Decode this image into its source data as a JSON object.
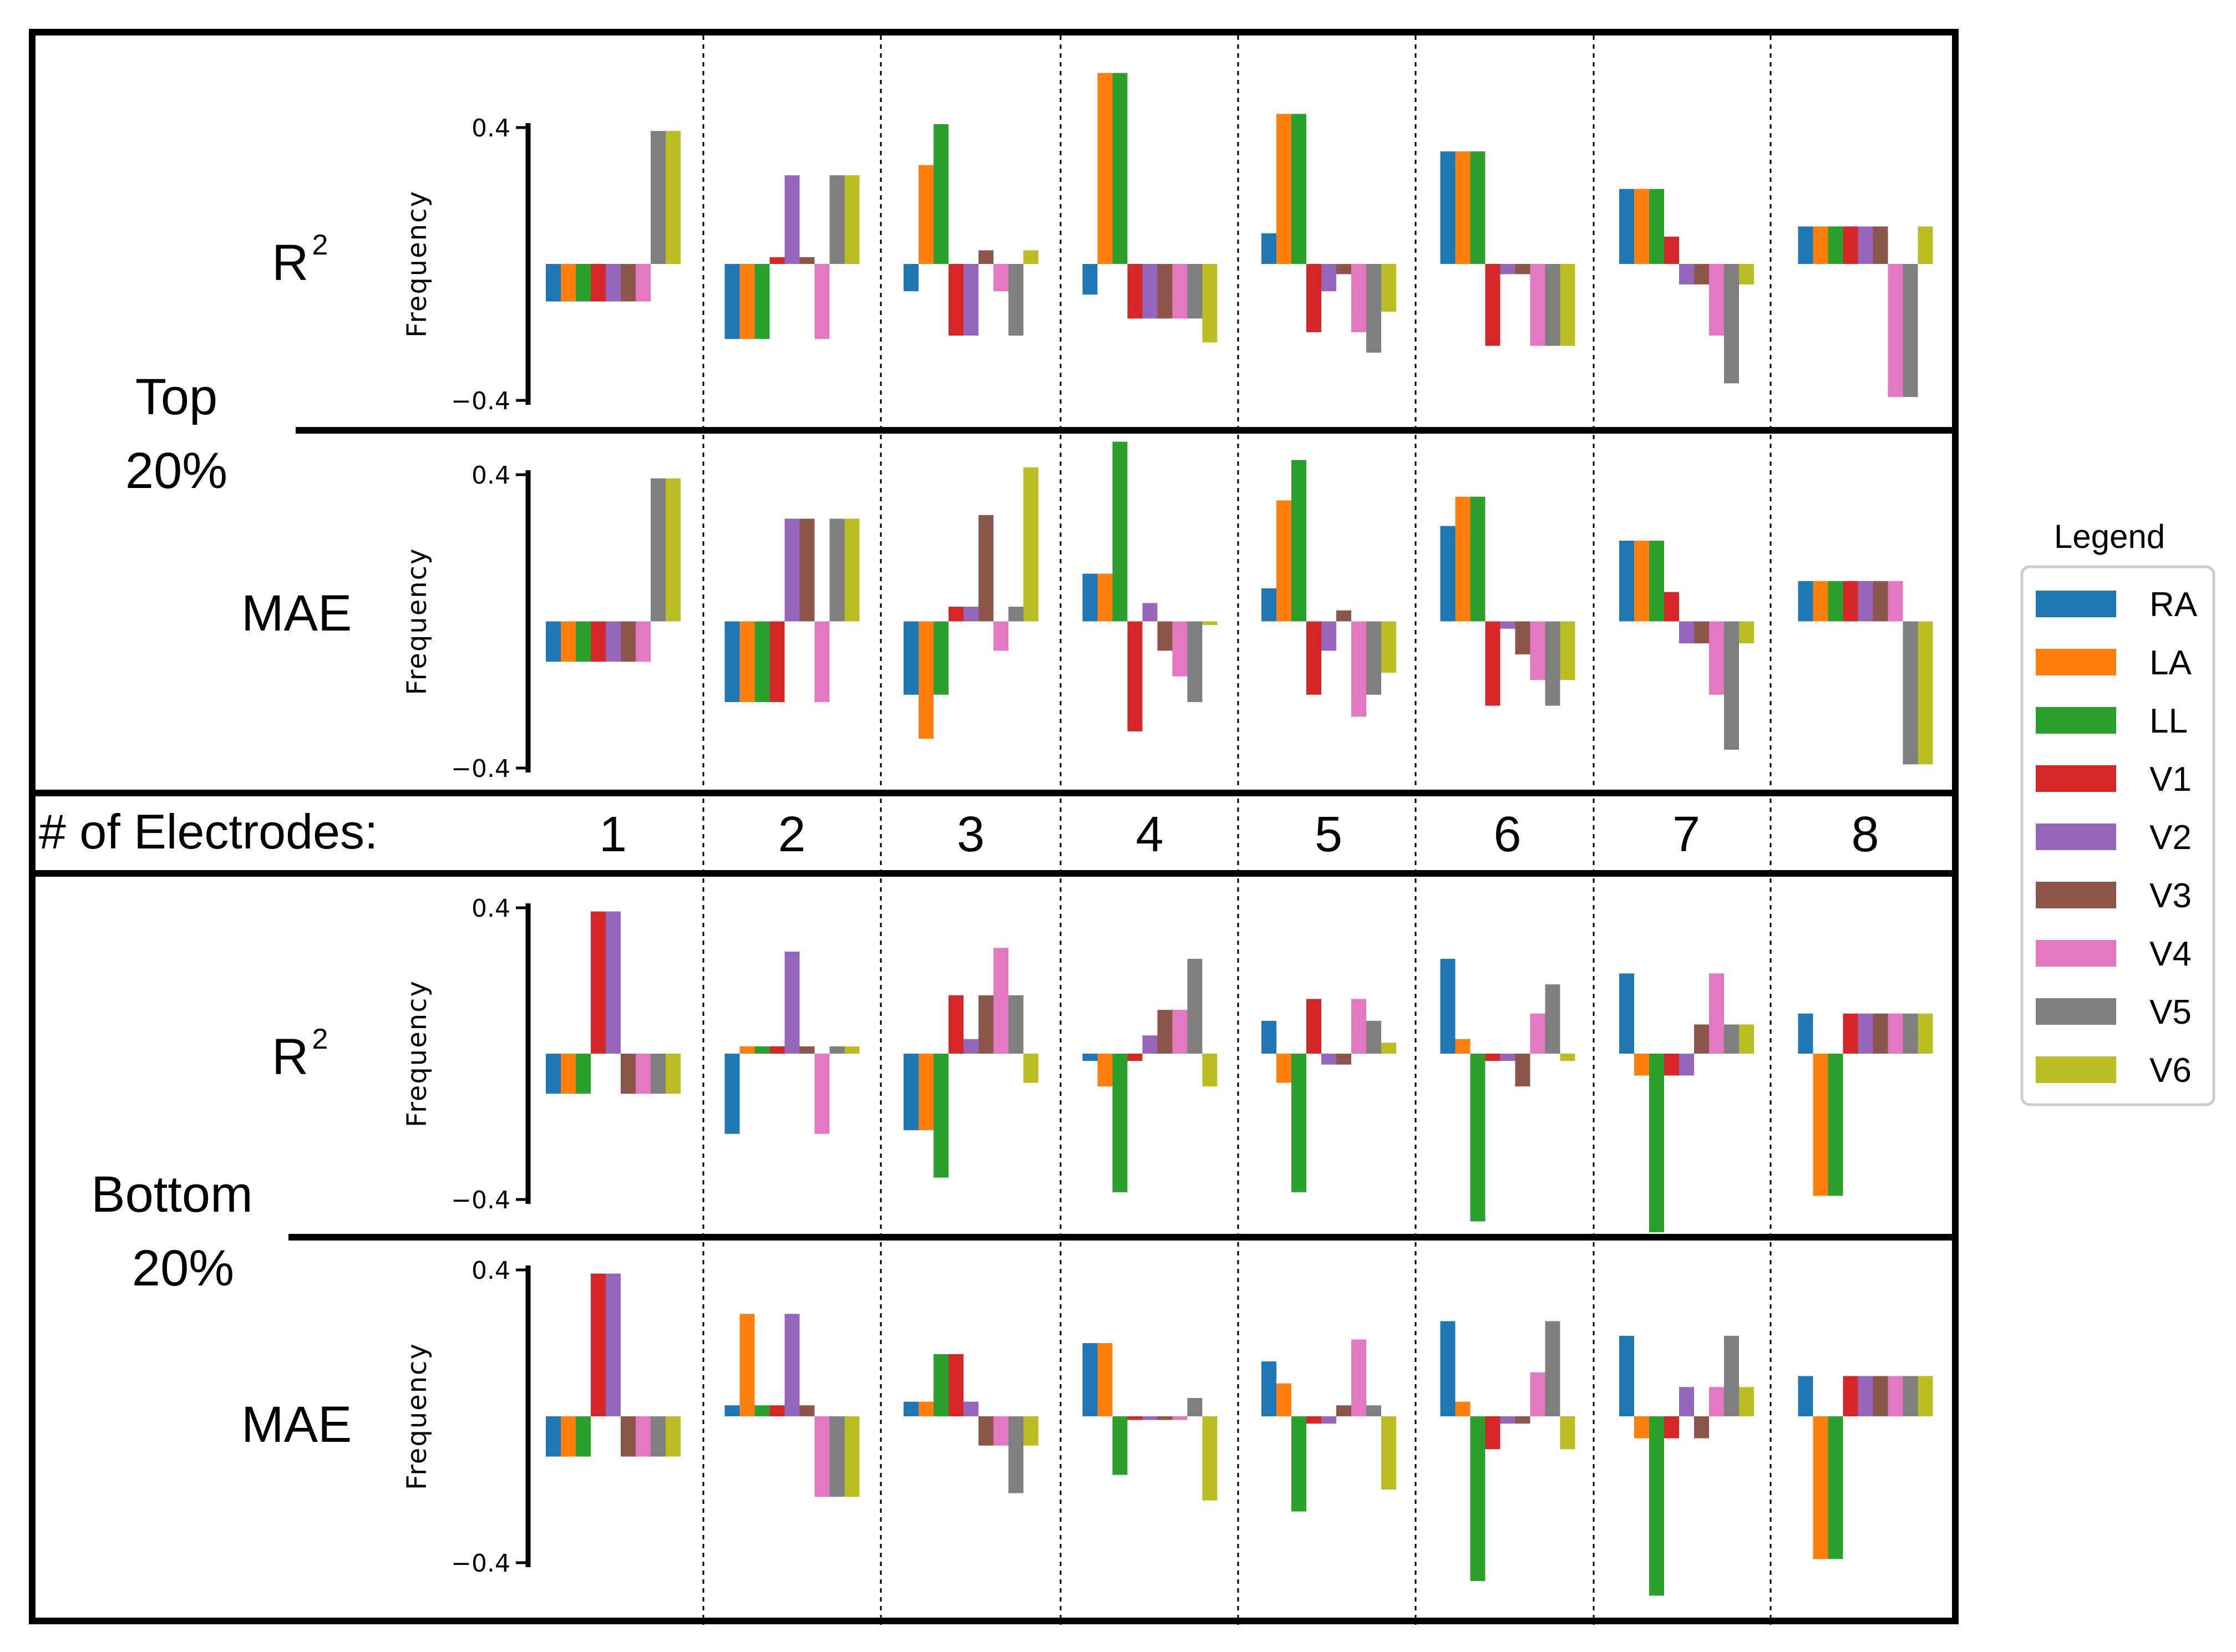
{
  "header_label": "# of Electrodes:",
  "group_labels": {
    "top": [
      "Top",
      "20%"
    ],
    "bottom": [
      "Bottom",
      "20%"
    ]
  },
  "row_labels": {
    "r2_base": "R",
    "r2_sup": "2",
    "mae": "MAE"
  },
  "legend": {
    "title": "Legend",
    "items": [
      {
        "name": "RA",
        "color": "#1f77b4"
      },
      {
        "name": "LA",
        "color": "#ff7f0e"
      },
      {
        "name": "LL",
        "color": "#2ca02c"
      },
      {
        "name": "V1",
        "color": "#d62728"
      },
      {
        "name": "V2",
        "color": "#9467bd"
      },
      {
        "name": "V3",
        "color": "#8c564b"
      },
      {
        "name": "V4",
        "color": "#e377c2"
      },
      {
        "name": "V5",
        "color": "#7f7f7f"
      },
      {
        "name": "V6",
        "color": "#bcbd22"
      }
    ]
  },
  "chart_data": {
    "type": "bar",
    "y_axis_label": "Frequency",
    "ylim": [
      -0.4,
      0.4
    ],
    "yticks": [
      "0.4",
      "−0.4"
    ],
    "series_names": [
      "RA",
      "LA",
      "LL",
      "V1",
      "V2",
      "V3",
      "V4",
      "V5",
      "V6"
    ],
    "categories": [
      "1",
      "2",
      "3",
      "4",
      "5",
      "6",
      "7",
      "8"
    ],
    "panels": [
      {
        "group": "Top 20%",
        "metric": "R2",
        "values": [
          [
            -0.11,
            -0.11,
            -0.11,
            -0.11,
            -0.11,
            -0.11,
            -0.11,
            0.39,
            0.39
          ],
          [
            -0.22,
            -0.22,
            -0.22,
            0.02,
            0.26,
            0.02,
            -0.22,
            0.26,
            0.26
          ],
          [
            -0.08,
            0.29,
            0.41,
            -0.21,
            -0.21,
            0.04,
            -0.08,
            -0.21,
            0.04
          ],
          [
            -0.09,
            0.56,
            0.56,
            -0.16,
            -0.16,
            -0.16,
            -0.16,
            -0.16,
            -0.23
          ],
          [
            0.09,
            0.44,
            0.44,
            -0.2,
            -0.08,
            -0.03,
            -0.2,
            -0.26,
            -0.14
          ],
          [
            0.33,
            0.33,
            0.33,
            -0.24,
            -0.03,
            -0.03,
            -0.24,
            -0.24,
            -0.24
          ],
          [
            0.22,
            0.22,
            0.22,
            0.08,
            -0.06,
            -0.06,
            -0.21,
            -0.35,
            -0.06
          ],
          [
            0.11,
            0.11,
            0.11,
            0.11,
            0.11,
            0.11,
            -0.39,
            -0.39,
            0.11
          ]
        ]
      },
      {
        "group": "Top 20%",
        "metric": "MAE",
        "values": [
          [
            -0.11,
            -0.11,
            -0.11,
            -0.11,
            -0.11,
            -0.11,
            -0.11,
            0.39,
            0.39
          ],
          [
            -0.22,
            -0.22,
            -0.22,
            -0.22,
            0.28,
            0.28,
            -0.22,
            0.28,
            0.28
          ],
          [
            -0.2,
            -0.32,
            -0.2,
            0.04,
            0.04,
            0.29,
            -0.08,
            0.04,
            0.42
          ],
          [
            0.13,
            0.13,
            0.49,
            -0.3,
            0.05,
            -0.08,
            -0.15,
            -0.22,
            -0.01
          ],
          [
            0.09,
            0.33,
            0.44,
            -0.2,
            -0.08,
            0.03,
            -0.26,
            -0.2,
            -0.14
          ],
          [
            0.26,
            0.34,
            0.34,
            -0.23,
            -0.02,
            -0.09,
            -0.16,
            -0.23,
            -0.16
          ],
          [
            0.22,
            0.22,
            0.22,
            0.08,
            -0.06,
            -0.06,
            -0.2,
            -0.35,
            -0.06
          ],
          [
            0.11,
            0.11,
            0.11,
            0.11,
            0.11,
            0.11,
            0.11,
            -0.39,
            -0.39
          ]
        ]
      },
      {
        "group": "Bottom 20%",
        "metric": "R2",
        "values": [
          [
            -0.11,
            -0.11,
            -0.11,
            0.39,
            0.39,
            -0.11,
            -0.11,
            -0.11,
            -0.11
          ],
          [
            -0.22,
            0.02,
            0.02,
            0.02,
            0.28,
            0.02,
            -0.22,
            0.02,
            0.02
          ],
          [
            -0.21,
            -0.21,
            -0.34,
            0.16,
            0.04,
            0.16,
            0.29,
            0.16,
            -0.08
          ],
          [
            -0.02,
            -0.09,
            -0.38,
            -0.02,
            0.05,
            0.12,
            0.12,
            0.26,
            -0.09
          ],
          [
            0.09,
            -0.08,
            -0.38,
            0.15,
            -0.03,
            -0.03,
            0.15,
            0.09,
            0.03
          ],
          [
            0.26,
            0.04,
            -0.46,
            -0.02,
            -0.02,
            -0.09,
            0.11,
            0.19,
            -0.02
          ],
          [
            0.22,
            -0.06,
            -0.49,
            -0.06,
            -0.06,
            0.08,
            0.22,
            0.08,
            0.08
          ],
          [
            0.11,
            -0.39,
            -0.39,
            0.11,
            0.11,
            0.11,
            0.11,
            0.11,
            0.11
          ]
        ]
      },
      {
        "group": "Bottom 20%",
        "metric": "MAE",
        "values": [
          [
            -0.11,
            -0.11,
            -0.11,
            0.39,
            0.39,
            -0.11,
            -0.11,
            -0.11,
            -0.11
          ],
          [
            0.03,
            0.28,
            0.03,
            0.03,
            0.28,
            0.03,
            -0.22,
            -0.22,
            -0.22
          ],
          [
            0.04,
            0.04,
            0.17,
            0.17,
            0.04,
            -0.08,
            -0.08,
            -0.21,
            -0.08
          ],
          [
            0.2,
            0.2,
            -0.16,
            -0.01,
            -0.01,
            -0.01,
            -0.01,
            0.05,
            -0.23
          ],
          [
            0.15,
            0.09,
            -0.26,
            -0.02,
            -0.02,
            0.03,
            0.21,
            0.03,
            -0.2
          ],
          [
            0.26,
            0.04,
            -0.45,
            -0.09,
            -0.02,
            -0.02,
            0.12,
            0.26,
            -0.09
          ],
          [
            0.22,
            -0.06,
            -0.49,
            -0.06,
            0.08,
            -0.06,
            0.08,
            0.22,
            0.08
          ],
          [
            0.11,
            -0.39,
            -0.39,
            0.11,
            0.11,
            0.11,
            0.11,
            0.11,
            0.11
          ]
        ]
      }
    ]
  }
}
